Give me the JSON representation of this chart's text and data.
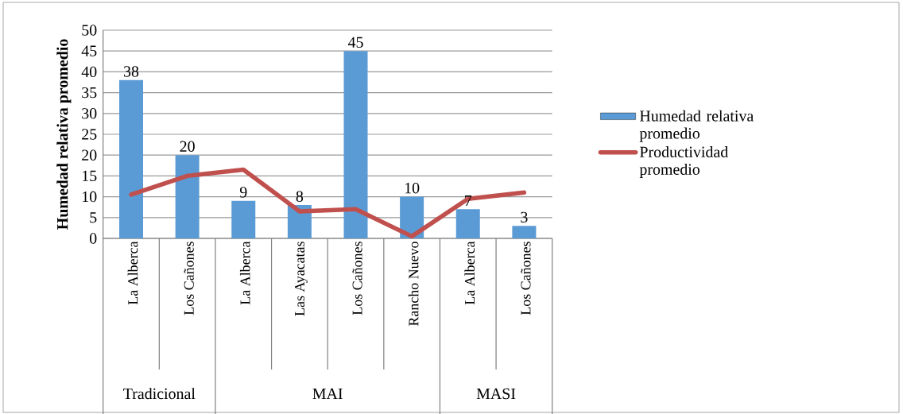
{
  "chart_data": {
    "type": "bar",
    "ylabel": "Humedad relativa promedio",
    "categories": [
      "La Alberca",
      "Los Cañones",
      "La Alberca",
      "Las Ayacatas",
      "Los Cañones",
      "Rancho Nuevo",
      "La Alberca",
      "Los Cañones"
    ],
    "series": [
      {
        "name": "Humedad relativa promedio",
        "color": "#5b9bd5",
        "values": [
          38,
          20,
          9,
          8,
          45,
          10,
          7,
          3
        ],
        "value_labels": [
          "38",
          "20",
          "9",
          "8",
          "45",
          "10",
          "7",
          "3"
        ]
      },
      {
        "name": "Productividad promedio",
        "type": "line",
        "color": "#c0504d",
        "values": [
          10.5,
          15,
          16.5,
          6.5,
          7,
          0.5,
          9.5,
          11
        ]
      }
    ],
    "ylim": [
      0,
      50
    ],
    "yticks": [
      0,
      5,
      10,
      15,
      20,
      25,
      30,
      35,
      40,
      45,
      50
    ],
    "grid": "y",
    "legend": "right",
    "annotations": [
      "Tradicional",
      "MAI",
      "MASI"
    ]
  }
}
